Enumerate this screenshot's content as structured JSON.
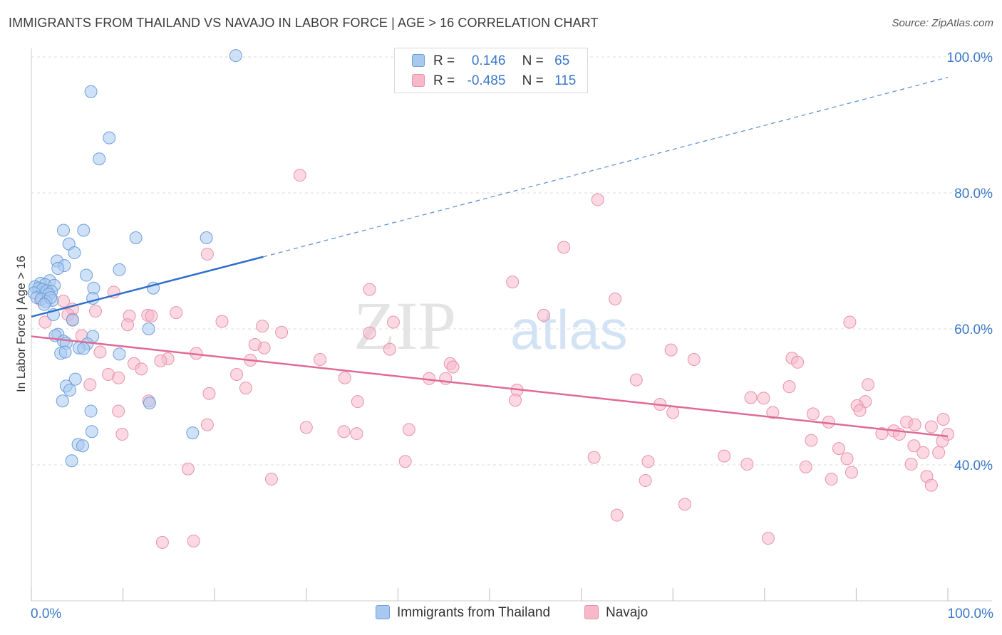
{
  "title": "IMMIGRANTS FROM THAILAND VS NAVAJO IN LABOR FORCE | AGE > 16 CORRELATION CHART",
  "source": "Source: ZipAtlas.com",
  "watermark": {
    "zip": "ZIP",
    "atlas": "atlas"
  },
  "stats": {
    "row1": {
      "r_label": "R =",
      "r_value": "0.146",
      "n_label": "N =",
      "n_value": "65",
      "color": "#a8c8f0"
    },
    "row2": {
      "r_label": "R =",
      "r_value": "-0.485",
      "n_label": "N =",
      "n_value": "115",
      "color": "#f7b8ca"
    }
  },
  "legend": {
    "series1": "Immigrants from Thailand",
    "series2": "Navajo"
  },
  "colors": {
    "blue_fill": "#a8c8f0",
    "blue_stroke": "#6f9fd8",
    "blue_line": "#2f6fca",
    "pink_fill": "#f7b8ca",
    "pink_stroke": "#e893ad",
    "pink_line": "#e06a96",
    "axis_text": "#3a78c9",
    "grid": "#dddddd"
  },
  "chart_data": {
    "type": "scatter",
    "xlabel": "",
    "ylabel": "In Labor Force | Age > 16",
    "xlim": [
      0,
      100
    ],
    "ylim": [
      20,
      102
    ],
    "x_tick_labels": [
      "0.0%",
      "100.0%"
    ],
    "y_ticks": [
      40,
      60,
      80,
      100
    ],
    "y_tick_labels": [
      "40.0%",
      "60.0%",
      "80.0%",
      "100.0%"
    ],
    "grid": true,
    "legend_position": "bottom",
    "series": [
      {
        "name": "Immigrants from Thailand",
        "points": [
          [
            22.3,
            100.2
          ],
          [
            6.5,
            94.9
          ],
          [
            8.5,
            88.1
          ],
          [
            7.4,
            85.0
          ],
          [
            3.5,
            74.5
          ],
          [
            5.7,
            74.5
          ],
          [
            11.4,
            73.4
          ],
          [
            19.1,
            73.4
          ],
          [
            4.1,
            72.5
          ],
          [
            4.7,
            71.2
          ],
          [
            2.8,
            70.0
          ],
          [
            3.6,
            69.3
          ],
          [
            2.9,
            68.9
          ],
          [
            9.6,
            68.7
          ],
          [
            6.0,
            67.9
          ],
          [
            2.0,
            67.1
          ],
          [
            1.0,
            66.7
          ],
          [
            1.5,
            66.5
          ],
          [
            2.5,
            66.4
          ],
          [
            0.4,
            66.2
          ],
          [
            0.8,
            66.0
          ],
          [
            1.2,
            65.8
          ],
          [
            1.7,
            65.6
          ],
          [
            2.2,
            65.5
          ],
          [
            0.3,
            65.3
          ],
          [
            1.9,
            65.1
          ],
          [
            6.8,
            66.0
          ],
          [
            13.3,
            66.0
          ],
          [
            0.6,
            64.6
          ],
          [
            1.1,
            64.4
          ],
          [
            2.3,
            64.2
          ],
          [
            1.6,
            64.0
          ],
          [
            2.1,
            64.6
          ],
          [
            6.7,
            64.5
          ],
          [
            1.4,
            63.6
          ],
          [
            2.4,
            62.1
          ],
          [
            4.5,
            61.3
          ],
          [
            12.8,
            60.0
          ],
          [
            2.9,
            59.2
          ],
          [
            2.6,
            59.0
          ],
          [
            6.7,
            58.9
          ],
          [
            3.5,
            58.2
          ],
          [
            3.8,
            57.9
          ],
          [
            6.1,
            57.8
          ],
          [
            5.2,
            57.2
          ],
          [
            5.7,
            57.1
          ],
          [
            3.2,
            56.4
          ],
          [
            3.7,
            56.6
          ],
          [
            9.6,
            56.3
          ],
          [
            4.8,
            52.6
          ],
          [
            3.8,
            51.6
          ],
          [
            4.2,
            51.0
          ],
          [
            3.4,
            49.4
          ],
          [
            12.9,
            49.1
          ],
          [
            6.5,
            47.9
          ],
          [
            6.6,
            44.9
          ],
          [
            17.6,
            44.7
          ],
          [
            5.1,
            43.0
          ],
          [
            5.6,
            42.8
          ],
          [
            4.4,
            40.6
          ]
        ],
        "trend": {
          "x": [
            0,
            25.3
          ],
          "y": [
            61.8,
            70.6
          ],
          "dashed_extension_to": [
            100,
            97.0
          ]
        }
      },
      {
        "name": "Navajo",
        "points": [
          [
            29.3,
            82.6
          ],
          [
            61.8,
            79.0
          ],
          [
            58.1,
            72.0
          ],
          [
            19.2,
            71.0
          ],
          [
            52.5,
            66.9
          ],
          [
            36.9,
            65.8
          ],
          [
            9.0,
            65.4
          ],
          [
            63.7,
            64.4
          ],
          [
            1.0,
            64.3
          ],
          [
            3.5,
            64.1
          ],
          [
            4.5,
            62.9
          ],
          [
            7.0,
            62.6
          ],
          [
            15.8,
            62.4
          ],
          [
            4.0,
            62.1
          ],
          [
            12.7,
            62.0
          ],
          [
            10.7,
            61.9
          ],
          [
            13.1,
            61.9
          ],
          [
            55.9,
            62.0
          ],
          [
            4.5,
            61.4
          ],
          [
            20.8,
            61.1
          ],
          [
            1.5,
            61.0
          ],
          [
            39.5,
            61.0
          ],
          [
            10.5,
            60.6
          ],
          [
            25.2,
            60.4
          ],
          [
            89.3,
            61.0
          ],
          [
            36.9,
            59.4
          ],
          [
            27.3,
            59.5
          ],
          [
            5.5,
            59.0
          ],
          [
            25.4,
            57.2
          ],
          [
            24.4,
            57.7
          ],
          [
            39.1,
            57.0
          ],
          [
            69.8,
            56.9
          ],
          [
            18.0,
            56.4
          ],
          [
            7.5,
            56.6
          ],
          [
            14.9,
            55.6
          ],
          [
            23.9,
            55.4
          ],
          [
            31.5,
            55.5
          ],
          [
            72.3,
            55.5
          ],
          [
            14.1,
            55.3
          ],
          [
            45.7,
            54.9
          ],
          [
            46.0,
            54.4
          ],
          [
            11.2,
            54.9
          ],
          [
            83.0,
            55.7
          ],
          [
            83.6,
            55.1
          ],
          [
            12.0,
            54.1
          ],
          [
            8.4,
            53.3
          ],
          [
            22.4,
            53.3
          ],
          [
            34.2,
            52.8
          ],
          [
            9.5,
            52.8
          ],
          [
            43.4,
            52.7
          ],
          [
            45.2,
            52.7
          ],
          [
            66.0,
            52.5
          ],
          [
            6.4,
            51.8
          ],
          [
            23.4,
            51.3
          ],
          [
            53.0,
            51.0
          ],
          [
            82.7,
            51.5
          ],
          [
            91.3,
            51.8
          ],
          [
            19.4,
            50.5
          ],
          [
            78.5,
            49.9
          ],
          [
            79.9,
            49.8
          ],
          [
            35.6,
            49.3
          ],
          [
            52.8,
            49.5
          ],
          [
            12.8,
            49.4
          ],
          [
            91.0,
            49.3
          ],
          [
            68.6,
            48.9
          ],
          [
            90.1,
            48.7
          ],
          [
            90.4,
            48.0
          ],
          [
            9.5,
            47.9
          ],
          [
            70.0,
            47.7
          ],
          [
            80.9,
            47.7
          ],
          [
            85.3,
            47.5
          ],
          [
            99.5,
            46.7
          ],
          [
            87.0,
            46.3
          ],
          [
            95.5,
            46.3
          ],
          [
            96.4,
            45.9
          ],
          [
            19.2,
            45.9
          ],
          [
            41.2,
            45.2
          ],
          [
            34.1,
            44.9
          ],
          [
            94.1,
            45.0
          ],
          [
            98.2,
            45.6
          ],
          [
            30.0,
            45.5
          ],
          [
            35.5,
            44.6
          ],
          [
            9.9,
            44.5
          ],
          [
            92.8,
            44.6
          ],
          [
            100.0,
            44.5
          ],
          [
            94.7,
            44.5
          ],
          [
            85.1,
            43.6
          ],
          [
            99.4,
            43.5
          ],
          [
            96.3,
            42.8
          ],
          [
            88.1,
            42.4
          ],
          [
            97.3,
            41.8
          ],
          [
            99.0,
            41.8
          ],
          [
            61.4,
            41.1
          ],
          [
            75.6,
            41.3
          ],
          [
            89.0,
            40.9
          ],
          [
            40.8,
            40.5
          ],
          [
            67.3,
            40.5
          ],
          [
            78.1,
            40.1
          ],
          [
            96.0,
            40.1
          ],
          [
            84.5,
            39.7
          ],
          [
            17.1,
            39.4
          ],
          [
            89.5,
            38.9
          ],
          [
            97.7,
            38.3
          ],
          [
            26.2,
            37.9
          ],
          [
            87.3,
            37.9
          ],
          [
            67.0,
            37.7
          ],
          [
            98.2,
            37.0
          ],
          [
            71.3,
            34.2
          ],
          [
            63.9,
            32.6
          ],
          [
            80.4,
            29.2
          ],
          [
            14.3,
            28.6
          ],
          [
            17.7,
            28.8
          ]
        ],
        "trend": {
          "x": [
            0,
            100
          ],
          "y": [
            58.9,
            44.2
          ]
        }
      }
    ]
  }
}
